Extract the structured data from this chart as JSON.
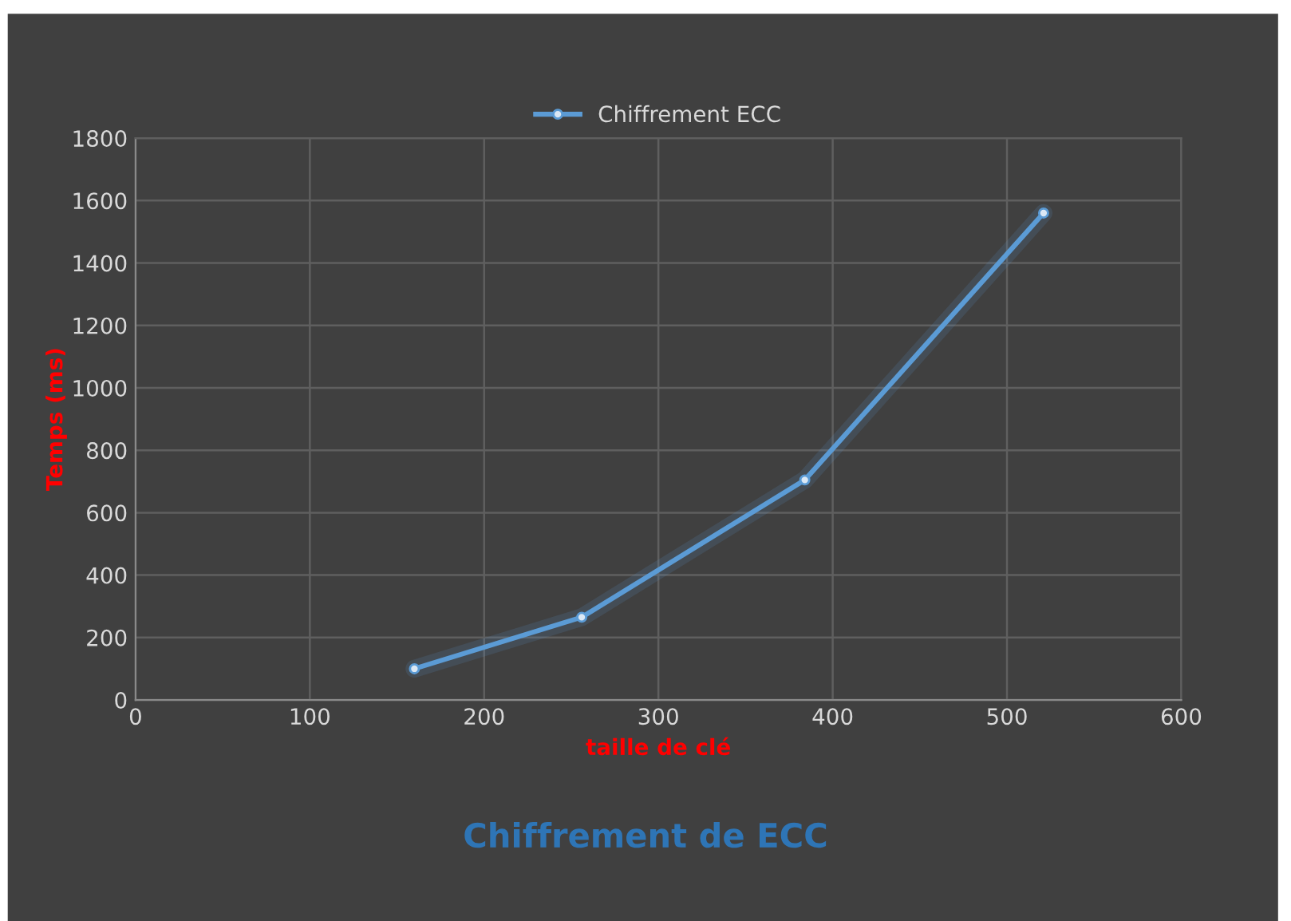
{
  "chart_data": {
    "type": "line",
    "title": "Chiffrement de ECC",
    "xlabel": "taille de clé",
    "ylabel": "Temps (ms)",
    "x": [
      160,
      256,
      384,
      521
    ],
    "series": [
      {
        "name": "Chiffrement ECC",
        "color": "#5b9bd5",
        "values": [
          100,
          265,
          705,
          1560
        ]
      }
    ],
    "xlim": [
      0,
      600
    ],
    "xticks": [
      0,
      100,
      200,
      300,
      400,
      500,
      600
    ],
    "ylim": [
      0,
      1800
    ],
    "yticks": [
      0,
      200,
      400,
      600,
      800,
      1000,
      1200,
      1400,
      1600,
      1800
    ],
    "grid": true,
    "legend": "top",
    "marker": "circle",
    "line_style": "solid"
  }
}
